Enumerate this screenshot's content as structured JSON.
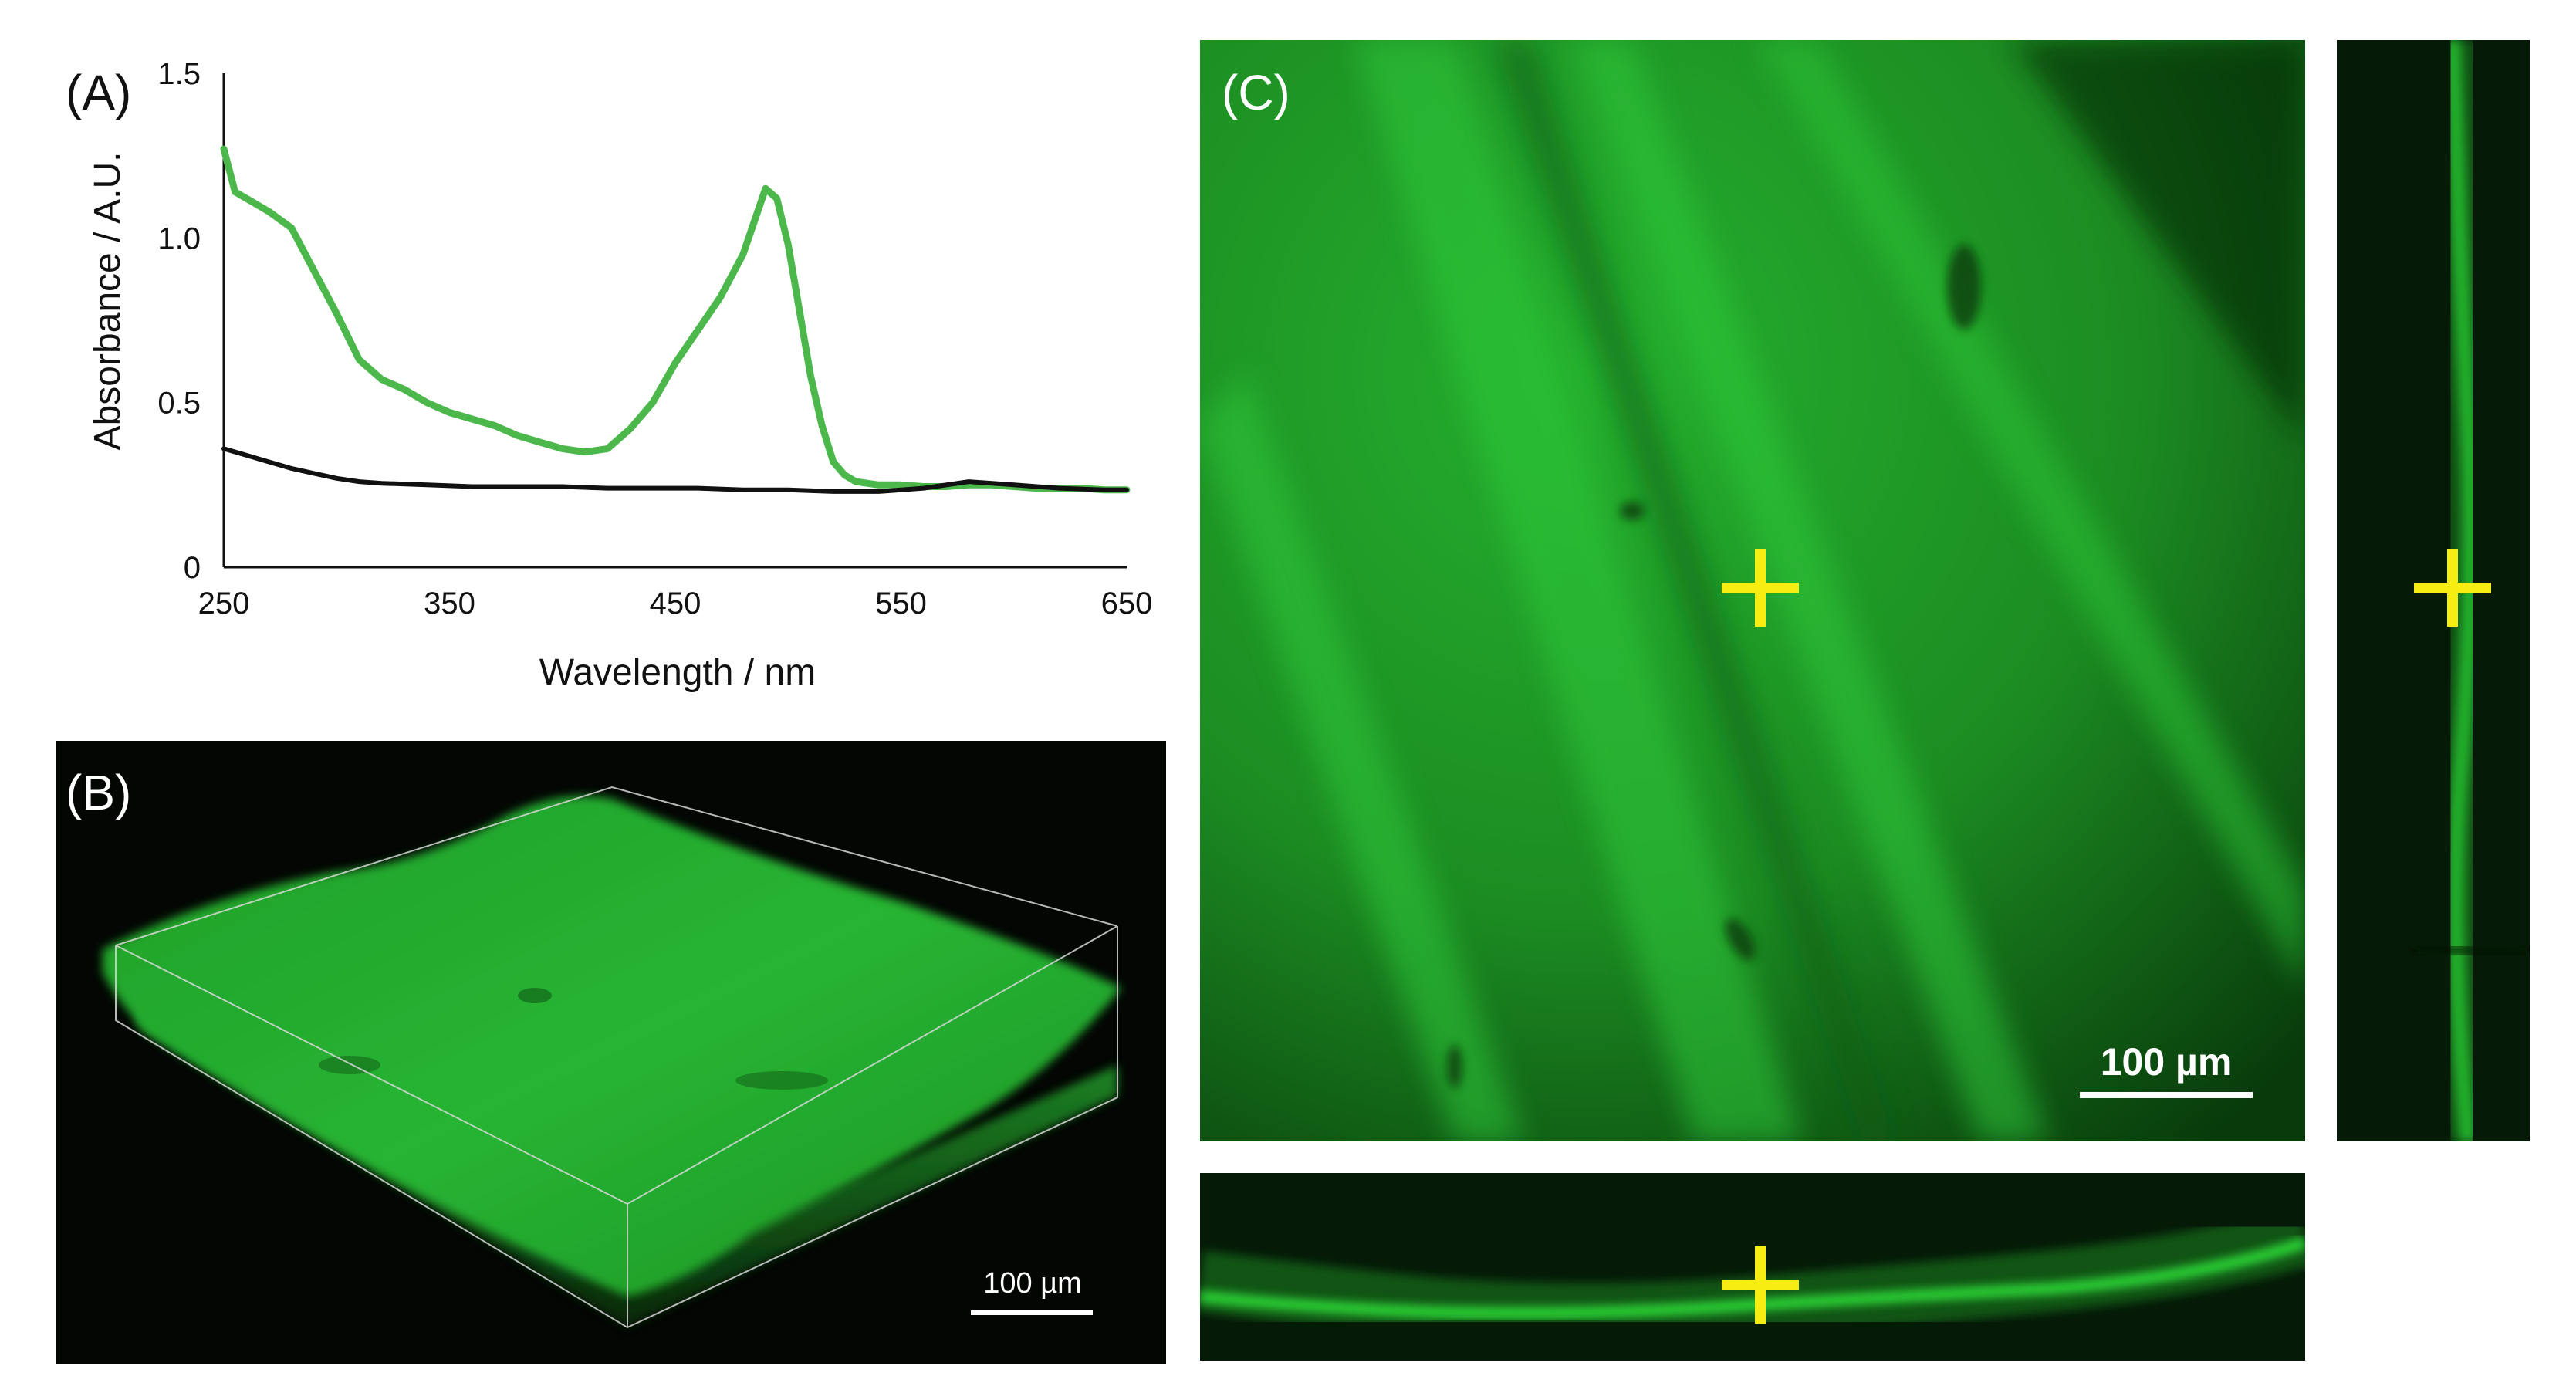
{
  "panels": {
    "a": {
      "label": "(A)"
    },
    "b": {
      "label": "(B)",
      "scale_bar": "100 µm"
    },
    "c": {
      "label": "(C)",
      "scale_bar": "100 µm"
    }
  },
  "colors": {
    "green_series": "#4cb84c",
    "black_series": "#111111",
    "fluorescence": "#22c02a",
    "crosshair": "#f6ee12"
  },
  "chart_data": {
    "type": "line",
    "title": "",
    "xlabel": "Wavelength / nm",
    "ylabel": "Absorbance / A.U.",
    "xlim": [
      250,
      650
    ],
    "ylim": [
      0,
      1.5
    ],
    "xticks": [
      "250",
      "350",
      "450",
      "550",
      "650"
    ],
    "yticks": [
      "0",
      "0.5",
      "1.0",
      "1.5"
    ],
    "grid": false,
    "series": [
      {
        "color": "#4cb84c",
        "x": [
          250,
          255,
          260,
          270,
          280,
          290,
          300,
          310,
          320,
          330,
          340,
          350,
          360,
          370,
          380,
          390,
          400,
          410,
          420,
          430,
          440,
          450,
          460,
          470,
          480,
          485,
          490,
          495,
          500,
          505,
          510,
          515,
          520,
          525,
          530,
          540,
          550,
          560,
          570,
          580,
          590,
          600,
          610,
          620,
          630,
          640,
          650
        ],
        "y": [
          1.27,
          1.14,
          1.12,
          1.08,
          1.03,
          0.9,
          0.77,
          0.63,
          0.57,
          0.54,
          0.5,
          0.47,
          0.45,
          0.43,
          0.4,
          0.38,
          0.36,
          0.35,
          0.36,
          0.42,
          0.5,
          0.62,
          0.72,
          0.82,
          0.95,
          1.05,
          1.15,
          1.12,
          0.98,
          0.78,
          0.58,
          0.43,
          0.32,
          0.28,
          0.26,
          0.25,
          0.25,
          0.245,
          0.245,
          0.25,
          0.25,
          0.245,
          0.24,
          0.24,
          0.24,
          0.235,
          0.235
        ]
      },
      {
        "color": "#111111",
        "x": [
          250,
          260,
          270,
          280,
          290,
          300,
          310,
          320,
          340,
          360,
          380,
          400,
          420,
          440,
          460,
          480,
          500,
          520,
          540,
          560,
          580,
          600,
          620,
          640,
          650
        ],
        "y": [
          0.36,
          0.34,
          0.32,
          0.3,
          0.285,
          0.27,
          0.26,
          0.255,
          0.25,
          0.245,
          0.245,
          0.245,
          0.24,
          0.24,
          0.24,
          0.235,
          0.235,
          0.23,
          0.23,
          0.24,
          0.26,
          0.25,
          0.24,
          0.235,
          0.235
        ]
      }
    ]
  }
}
